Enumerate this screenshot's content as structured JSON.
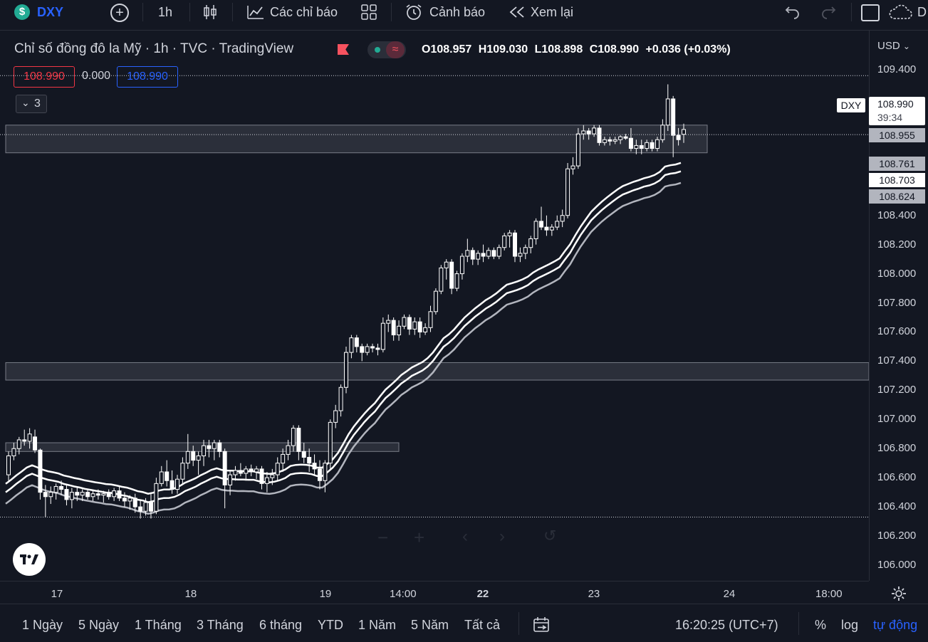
{
  "toolbar": {
    "symbol": "DXY",
    "interval": "1h",
    "indicators_label": "Các chỉ báo",
    "alert_label": "Cảnh báo",
    "replay_label": "Xem lại",
    "cutoff_text": "D"
  },
  "legend": {
    "title": "Chỉ số đồng đô la Mỹ · 1h · TVC · TradingView",
    "open_label": "O",
    "open": "108.957",
    "high_label": "H",
    "high": "109.030",
    "low_label": "L",
    "low": "108.898",
    "close_label": "C",
    "close": "108.990",
    "change": "+0.036 (+0.03%)",
    "sell_price": "108.990",
    "spread": "0.000",
    "buy_price": "108.990",
    "collapsed_count": "3"
  },
  "price_axis": {
    "currency": "USD",
    "ticks": [
      "109.400",
      "108.400",
      "108.200",
      "108.000",
      "107.800",
      "107.600",
      "107.400",
      "107.200",
      "107.000",
      "106.800",
      "106.600",
      "106.400",
      "106.200",
      "106.000"
    ],
    "symbol_tag": "DXY",
    "last_price": "108.990",
    "countdown": "39:34",
    "labels": [
      "108.955",
      "108.761",
      "108.703",
      "108.624"
    ]
  },
  "time_axis": {
    "ticks": [
      {
        "label": "17",
        "bold": false
      },
      {
        "label": "18",
        "bold": false
      },
      {
        "label": "19",
        "bold": false
      },
      {
        "label": "14:00",
        "bold": false
      },
      {
        "label": "22",
        "bold": true
      },
      {
        "label": "23",
        "bold": false
      },
      {
        "label": "24",
        "bold": false
      },
      {
        "label": "18:00",
        "bold": false
      }
    ]
  },
  "bottom_bar": {
    "ranges": [
      "1 Ngày",
      "5 Ngày",
      "1 Tháng",
      "3 Tháng",
      "6 tháng",
      "YTD",
      "1 Năm",
      "5 Năm",
      "Tất cả"
    ],
    "clock": "16:20:25 (UTC+7)",
    "percent_label": "%",
    "log_label": "log",
    "auto_label": "tự động"
  },
  "colors": {
    "background": "#131722",
    "candle": "#ffffff",
    "accent_blue": "#2962ff",
    "sell_red": "#f23645",
    "band_outer": "#b2b5be",
    "zone_fill": "#363a45"
  },
  "chart_data": {
    "type": "candlestick",
    "symbol": "DXY",
    "interval": "1h",
    "ylim": [
      105.9,
      109.6
    ],
    "indicators": [
      {
        "type": "band-upper",
        "last": 108.761
      },
      {
        "type": "band-middle",
        "last": 108.703
      },
      {
        "type": "band-lower",
        "last": 108.624
      }
    ],
    "zones": [
      {
        "from": 108.83,
        "to": 109.02
      },
      {
        "from": 107.27,
        "to": 107.39
      },
      {
        "from": 106.78,
        "to": 106.84
      }
    ],
    "candles": [
      {
        "o": 106.62,
        "h": 106.78,
        "l": 106.58,
        "c": 106.75
      },
      {
        "o": 106.75,
        "h": 106.84,
        "l": 106.72,
        "c": 106.8
      },
      {
        "o": 106.8,
        "h": 106.88,
        "l": 106.76,
        "c": 106.86
      },
      {
        "o": 106.86,
        "h": 106.93,
        "l": 106.82,
        "c": 106.85
      },
      {
        "o": 106.85,
        "h": 106.94,
        "l": 106.8,
        "c": 106.9
      },
      {
        "o": 106.88,
        "h": 106.93,
        "l": 106.77,
        "c": 106.79
      },
      {
        "o": 106.79,
        "h": 106.8,
        "l": 106.45,
        "c": 106.5
      },
      {
        "o": 106.5,
        "h": 106.55,
        "l": 106.33,
        "c": 106.47
      },
      {
        "o": 106.47,
        "h": 106.54,
        "l": 106.42,
        "c": 106.5
      },
      {
        "o": 106.5,
        "h": 106.56,
        "l": 106.45,
        "c": 106.54
      },
      {
        "o": 106.54,
        "h": 106.58,
        "l": 106.48,
        "c": 106.52
      },
      {
        "o": 106.52,
        "h": 106.55,
        "l": 106.41,
        "c": 106.45
      },
      {
        "o": 106.45,
        "h": 106.53,
        "l": 106.39,
        "c": 106.5
      },
      {
        "o": 106.5,
        "h": 106.53,
        "l": 106.44,
        "c": 106.48
      },
      {
        "o": 106.48,
        "h": 106.52,
        "l": 106.44,
        "c": 106.5
      },
      {
        "o": 106.5,
        "h": 106.52,
        "l": 106.45,
        "c": 106.47
      },
      {
        "o": 106.47,
        "h": 106.51,
        "l": 106.44,
        "c": 106.49
      },
      {
        "o": 106.49,
        "h": 106.52,
        "l": 106.45,
        "c": 106.48
      },
      {
        "o": 106.48,
        "h": 106.51,
        "l": 106.43,
        "c": 106.49
      },
      {
        "o": 106.49,
        "h": 106.52,
        "l": 106.45,
        "c": 106.47
      },
      {
        "o": 106.47,
        "h": 106.53,
        "l": 106.44,
        "c": 106.51
      },
      {
        "o": 106.51,
        "h": 106.54,
        "l": 106.44,
        "c": 106.46
      },
      {
        "o": 106.46,
        "h": 106.5,
        "l": 106.4,
        "c": 106.44
      },
      {
        "o": 106.44,
        "h": 106.48,
        "l": 106.38,
        "c": 106.46
      },
      {
        "o": 106.46,
        "h": 106.49,
        "l": 106.36,
        "c": 106.4
      },
      {
        "o": 106.4,
        "h": 106.45,
        "l": 106.32,
        "c": 106.37
      },
      {
        "o": 106.37,
        "h": 106.46,
        "l": 106.34,
        "c": 106.43
      },
      {
        "o": 106.43,
        "h": 106.5,
        "l": 106.32,
        "c": 106.37
      },
      {
        "o": 106.37,
        "h": 106.6,
        "l": 106.35,
        "c": 106.56
      },
      {
        "o": 106.56,
        "h": 106.68,
        "l": 106.54,
        "c": 106.64
      },
      {
        "o": 106.64,
        "h": 106.72,
        "l": 106.54,
        "c": 106.58
      },
      {
        "o": 106.58,
        "h": 106.65,
        "l": 106.49,
        "c": 106.52
      },
      {
        "o": 106.52,
        "h": 106.62,
        "l": 106.49,
        "c": 106.59
      },
      {
        "o": 106.59,
        "h": 106.74,
        "l": 106.55,
        "c": 106.7
      },
      {
        "o": 106.7,
        "h": 106.9,
        "l": 106.66,
        "c": 106.78
      },
      {
        "o": 106.78,
        "h": 106.82,
        "l": 106.68,
        "c": 106.72
      },
      {
        "o": 106.72,
        "h": 106.78,
        "l": 106.62,
        "c": 106.75
      },
      {
        "o": 106.75,
        "h": 106.86,
        "l": 106.68,
        "c": 106.82
      },
      {
        "o": 106.82,
        "h": 106.86,
        "l": 106.74,
        "c": 106.8
      },
      {
        "o": 106.8,
        "h": 106.86,
        "l": 106.72,
        "c": 106.84
      },
      {
        "o": 106.84,
        "h": 106.86,
        "l": 106.74,
        "c": 106.78
      },
      {
        "o": 106.78,
        "h": 106.8,
        "l": 106.39,
        "c": 106.55
      },
      {
        "o": 106.55,
        "h": 106.65,
        "l": 106.48,
        "c": 106.62
      },
      {
        "o": 106.62,
        "h": 106.68,
        "l": 106.58,
        "c": 106.65
      },
      {
        "o": 106.65,
        "h": 106.7,
        "l": 106.61,
        "c": 106.63
      },
      {
        "o": 106.63,
        "h": 106.68,
        "l": 106.58,
        "c": 106.66
      },
      {
        "o": 106.66,
        "h": 106.69,
        "l": 106.61,
        "c": 106.64
      },
      {
        "o": 106.64,
        "h": 106.68,
        "l": 106.59,
        "c": 106.66
      },
      {
        "o": 106.66,
        "h": 106.68,
        "l": 106.52,
        "c": 106.56
      },
      {
        "o": 106.56,
        "h": 106.64,
        "l": 106.5,
        "c": 106.6
      },
      {
        "o": 106.6,
        "h": 106.66,
        "l": 106.55,
        "c": 106.62
      },
      {
        "o": 106.62,
        "h": 106.74,
        "l": 106.58,
        "c": 106.7
      },
      {
        "o": 106.7,
        "h": 106.8,
        "l": 106.64,
        "c": 106.76
      },
      {
        "o": 106.76,
        "h": 106.86,
        "l": 106.72,
        "c": 106.82
      },
      {
        "o": 106.82,
        "h": 106.96,
        "l": 106.78,
        "c": 106.94
      },
      {
        "o": 106.94,
        "h": 106.96,
        "l": 106.72,
        "c": 106.78
      },
      {
        "o": 106.78,
        "h": 106.84,
        "l": 106.7,
        "c": 106.74
      },
      {
        "o": 106.74,
        "h": 106.8,
        "l": 106.64,
        "c": 106.7
      },
      {
        "o": 106.7,
        "h": 106.76,
        "l": 106.62,
        "c": 106.66
      },
      {
        "o": 106.66,
        "h": 106.72,
        "l": 106.52,
        "c": 106.58
      },
      {
        "o": 106.58,
        "h": 106.72,
        "l": 106.5,
        "c": 106.7
      },
      {
        "o": 106.7,
        "h": 107.0,
        "l": 106.66,
        "c": 106.98
      },
      {
        "o": 106.98,
        "h": 107.1,
        "l": 106.94,
        "c": 107.06
      },
      {
        "o": 107.06,
        "h": 107.24,
        "l": 107.02,
        "c": 107.22
      },
      {
        "o": 107.22,
        "h": 107.5,
        "l": 107.18,
        "c": 107.46
      },
      {
        "o": 107.46,
        "h": 107.58,
        "l": 107.42,
        "c": 107.56
      },
      {
        "o": 107.56,
        "h": 107.58,
        "l": 107.46,
        "c": 107.5
      },
      {
        "o": 107.5,
        "h": 107.52,
        "l": 107.4,
        "c": 107.46
      },
      {
        "o": 107.46,
        "h": 107.52,
        "l": 107.44,
        "c": 107.5
      },
      {
        "o": 107.5,
        "h": 107.52,
        "l": 107.46,
        "c": 107.49
      },
      {
        "o": 107.49,
        "h": 107.52,
        "l": 107.44,
        "c": 107.48
      },
      {
        "o": 107.48,
        "h": 107.7,
        "l": 107.46,
        "c": 107.66
      },
      {
        "o": 107.66,
        "h": 107.72,
        "l": 107.6,
        "c": 107.68
      },
      {
        "o": 107.68,
        "h": 107.7,
        "l": 107.54,
        "c": 107.58
      },
      {
        "o": 107.58,
        "h": 107.68,
        "l": 107.54,
        "c": 107.64
      },
      {
        "o": 107.64,
        "h": 107.72,
        "l": 107.62,
        "c": 107.7
      },
      {
        "o": 107.7,
        "h": 107.72,
        "l": 107.58,
        "c": 107.62
      },
      {
        "o": 107.62,
        "h": 107.7,
        "l": 107.58,
        "c": 107.67
      },
      {
        "o": 107.67,
        "h": 107.7,
        "l": 107.56,
        "c": 107.6
      },
      {
        "o": 107.6,
        "h": 107.66,
        "l": 107.58,
        "c": 107.63
      },
      {
        "o": 107.63,
        "h": 107.78,
        "l": 107.6,
        "c": 107.74
      },
      {
        "o": 107.74,
        "h": 107.9,
        "l": 107.72,
        "c": 107.88
      },
      {
        "o": 107.88,
        "h": 108.06,
        "l": 107.86,
        "c": 108.04
      },
      {
        "o": 108.04,
        "h": 108.1,
        "l": 107.96,
        "c": 108.08
      },
      {
        "o": 108.08,
        "h": 108.1,
        "l": 107.86,
        "c": 107.9
      },
      {
        "o": 107.9,
        "h": 108.02,
        "l": 107.88,
        "c": 108.0
      },
      {
        "o": 108.0,
        "h": 108.14,
        "l": 107.96,
        "c": 108.12
      },
      {
        "o": 108.12,
        "h": 108.24,
        "l": 108.08,
        "c": 108.16
      },
      {
        "o": 108.16,
        "h": 108.18,
        "l": 108.06,
        "c": 108.1
      },
      {
        "o": 108.1,
        "h": 108.16,
        "l": 108.06,
        "c": 108.14
      },
      {
        "o": 108.14,
        "h": 108.2,
        "l": 108.08,
        "c": 108.12
      },
      {
        "o": 108.12,
        "h": 108.18,
        "l": 108.1,
        "c": 108.16
      },
      {
        "o": 108.16,
        "h": 108.18,
        "l": 108.1,
        "c": 108.12
      },
      {
        "o": 108.12,
        "h": 108.2,
        "l": 108.1,
        "c": 108.18
      },
      {
        "o": 108.18,
        "h": 108.28,
        "l": 108.16,
        "c": 108.26
      },
      {
        "o": 108.26,
        "h": 108.3,
        "l": 108.18,
        "c": 108.28
      },
      {
        "o": 108.28,
        "h": 108.3,
        "l": 108.08,
        "c": 108.12
      },
      {
        "o": 108.12,
        "h": 108.18,
        "l": 108.08,
        "c": 108.14
      },
      {
        "o": 108.14,
        "h": 108.2,
        "l": 108.1,
        "c": 108.18
      },
      {
        "o": 108.18,
        "h": 108.26,
        "l": 108.14,
        "c": 108.24
      },
      {
        "o": 108.24,
        "h": 108.38,
        "l": 108.2,
        "c": 108.36
      },
      {
        "o": 108.36,
        "h": 108.46,
        "l": 108.3,
        "c": 108.32
      },
      {
        "o": 108.32,
        "h": 108.4,
        "l": 108.26,
        "c": 108.3
      },
      {
        "o": 108.3,
        "h": 108.34,
        "l": 108.26,
        "c": 108.32
      },
      {
        "o": 108.32,
        "h": 108.4,
        "l": 108.3,
        "c": 108.36
      },
      {
        "o": 108.36,
        "h": 108.44,
        "l": 108.32,
        "c": 108.4
      },
      {
        "o": 108.4,
        "h": 108.76,
        "l": 108.38,
        "c": 108.72
      },
      {
        "o": 108.72,
        "h": 108.8,
        "l": 108.68,
        "c": 108.74
      },
      {
        "o": 108.74,
        "h": 109.0,
        "l": 108.72,
        "c": 108.96
      },
      {
        "o": 108.96,
        "h": 109.02,
        "l": 108.92,
        "c": 108.98
      },
      {
        "o": 108.98,
        "h": 109.0,
        "l": 108.92,
        "c": 108.96
      },
      {
        "o": 108.96,
        "h": 109.02,
        "l": 108.94,
        "c": 109.0
      },
      {
        "o": 109.0,
        "h": 109.02,
        "l": 108.88,
        "c": 108.9
      },
      {
        "o": 108.9,
        "h": 108.94,
        "l": 108.88,
        "c": 108.92
      },
      {
        "o": 108.92,
        "h": 108.94,
        "l": 108.88,
        "c": 108.91
      },
      {
        "o": 108.91,
        "h": 108.94,
        "l": 108.89,
        "c": 108.92
      },
      {
        "o": 108.92,
        "h": 108.95,
        "l": 108.89,
        "c": 108.94
      },
      {
        "o": 108.94,
        "h": 108.96,
        "l": 108.92,
        "c": 108.93
      },
      {
        "o": 108.93,
        "h": 109.0,
        "l": 108.84,
        "c": 108.86
      },
      {
        "o": 108.86,
        "h": 108.92,
        "l": 108.82,
        "c": 108.88
      },
      {
        "o": 108.88,
        "h": 108.92,
        "l": 108.82,
        "c": 108.86
      },
      {
        "o": 108.86,
        "h": 108.92,
        "l": 108.84,
        "c": 108.9
      },
      {
        "o": 108.9,
        "h": 108.92,
        "l": 108.84,
        "c": 108.86
      },
      {
        "o": 108.86,
        "h": 108.94,
        "l": 108.84,
        "c": 108.92
      },
      {
        "o": 108.92,
        "h": 109.06,
        "l": 108.9,
        "c": 109.02
      },
      {
        "o": 109.02,
        "h": 109.3,
        "l": 108.98,
        "c": 109.2
      },
      {
        "o": 109.2,
        "h": 109.22,
        "l": 108.8,
        "c": 108.95
      },
      {
        "o": 108.95,
        "h": 109.0,
        "l": 108.88,
        "c": 108.92
      },
      {
        "o": 108.957,
        "h": 109.03,
        "l": 108.898,
        "c": 108.99
      }
    ]
  }
}
